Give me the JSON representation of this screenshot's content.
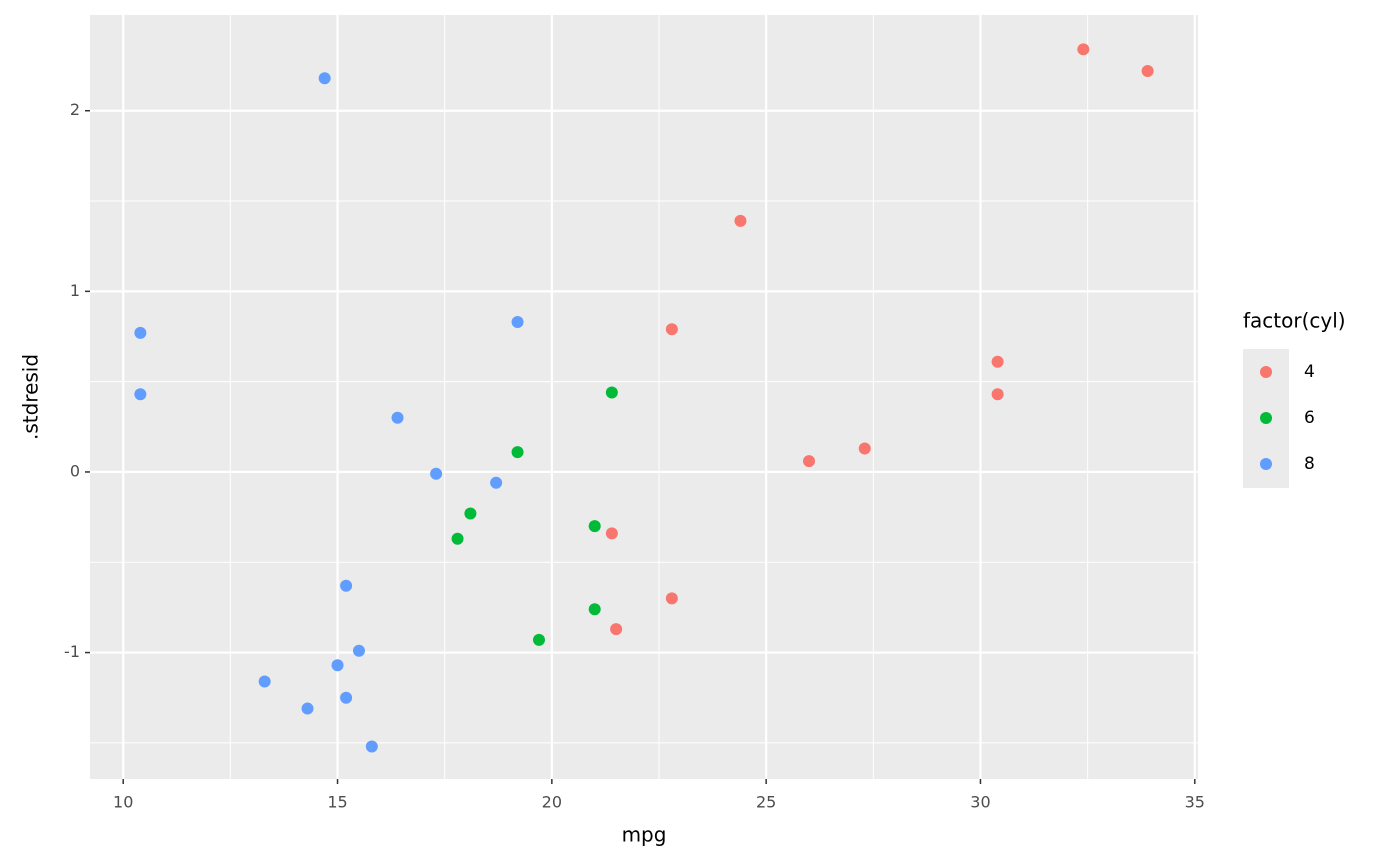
{
  "chart_data": {
    "type": "scatter",
    "x_label": "mpg",
    "y_label": ".stdresid",
    "legend_title": "factor(cyl)",
    "legend_position": "right",
    "xlim": [
      9.225,
      35.075
    ],
    "ylim": [
      -1.7,
      2.53
    ],
    "xticks": [
      10,
      15,
      20,
      25,
      30,
      35
    ],
    "yticks": [
      -1,
      0,
      1,
      2
    ],
    "xminor": [
      12.5,
      17.5,
      22.5,
      27.5,
      32.5
    ],
    "yminor": [
      -1.5,
      -0.5,
      0.5,
      1.5
    ],
    "grid": true,
    "series": [
      {
        "name": "4",
        "color": "#f8766d",
        "x": [
          32.4,
          33.9,
          24.4,
          22.8,
          30.4,
          30.4,
          27.3,
          26.0,
          21.4,
          22.8,
          21.5
        ],
        "values": [
          2.34,
          2.22,
          1.39,
          0.79,
          0.61,
          0.43,
          0.13,
          0.06,
          -0.34,
          -0.7,
          -0.87
        ]
      },
      {
        "name": "6",
        "color": "#00ba38",
        "x": [
          21.4,
          19.2,
          18.1,
          17.8,
          21.0,
          21.0,
          19.7
        ],
        "values": [
          0.44,
          0.11,
          -0.23,
          -0.37,
          -0.3,
          -0.76,
          -0.93
        ]
      },
      {
        "name": "8",
        "color": "#619cff",
        "x": [
          14.7,
          10.4,
          10.4,
          19.2,
          16.4,
          17.3,
          18.7,
          15.2,
          15.5,
          15.0,
          13.3,
          15.2,
          14.3,
          15.8
        ],
        "values": [
          2.18,
          0.77,
          0.43,
          0.83,
          0.3,
          -0.01,
          -0.06,
          -0.63,
          -0.99,
          -1.07,
          -1.16,
          -1.25,
          -1.31,
          -1.52
        ]
      }
    ]
  }
}
